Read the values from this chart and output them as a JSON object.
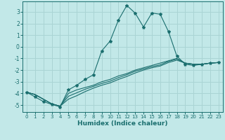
{
  "title": "",
  "xlabel": "Humidex (Indice chaleur)",
  "background_color": "#c2e8e8",
  "grid_color": "#aad4d4",
  "line_color": "#1a6e6e",
  "xlim": [
    -0.5,
    23.5
  ],
  "ylim": [
    -5.6,
    3.9
  ],
  "xticks": [
    0,
    1,
    2,
    3,
    4,
    5,
    6,
    7,
    8,
    9,
    10,
    11,
    12,
    13,
    14,
    15,
    16,
    17,
    18,
    19,
    20,
    21,
    22,
    23
  ],
  "yticks": [
    -5,
    -4,
    -3,
    -2,
    -1,
    0,
    1,
    2,
    3
  ],
  "series1_x": [
    0,
    1,
    2,
    3,
    4,
    5,
    6,
    7,
    8,
    9,
    10,
    11,
    12,
    13,
    14,
    15,
    16,
    17,
    18,
    19,
    20,
    21,
    22,
    23
  ],
  "series1_y": [
    -3.9,
    -4.3,
    -4.7,
    -4.95,
    -5.15,
    -3.7,
    -3.3,
    -2.8,
    -2.4,
    -0.35,
    0.5,
    2.3,
    3.55,
    2.9,
    1.7,
    2.9,
    2.8,
    1.3,
    -0.8,
    -1.5,
    -1.6,
    -1.5,
    -1.4,
    -1.35
  ],
  "series2_x": [
    0,
    1,
    2,
    3,
    4,
    5,
    6,
    7,
    8,
    9,
    10,
    11,
    12,
    13,
    14,
    15,
    16,
    17,
    18,
    19,
    20,
    21,
    22,
    23
  ],
  "series2_y": [
    -3.9,
    -4.1,
    -4.5,
    -4.9,
    -5.1,
    -4.0,
    -3.7,
    -3.5,
    -3.3,
    -3.0,
    -2.8,
    -2.5,
    -2.3,
    -2.0,
    -1.8,
    -1.6,
    -1.4,
    -1.2,
    -1.0,
    -1.4,
    -1.5,
    -1.5,
    -1.4,
    -1.35
  ],
  "series3_x": [
    0,
    1,
    2,
    3,
    4,
    5,
    6,
    7,
    8,
    9,
    10,
    11,
    12,
    13,
    14,
    15,
    16,
    17,
    18,
    19,
    20,
    21,
    22,
    23
  ],
  "series3_y": [
    -3.9,
    -4.1,
    -4.5,
    -4.9,
    -5.1,
    -4.25,
    -3.95,
    -3.65,
    -3.4,
    -3.15,
    -2.95,
    -2.65,
    -2.4,
    -2.1,
    -1.9,
    -1.7,
    -1.55,
    -1.25,
    -1.05,
    -1.4,
    -1.5,
    -1.5,
    -1.4,
    -1.35
  ],
  "series4_x": [
    0,
    1,
    2,
    3,
    4,
    5,
    6,
    7,
    8,
    9,
    10,
    11,
    12,
    13,
    14,
    15,
    16,
    17,
    18,
    19,
    20,
    21,
    22,
    23
  ],
  "series4_y": [
    -3.9,
    -4.1,
    -4.5,
    -4.9,
    -5.1,
    -4.5,
    -4.2,
    -3.85,
    -3.55,
    -3.3,
    -3.1,
    -2.8,
    -2.55,
    -2.25,
    -2.0,
    -1.8,
    -1.65,
    -1.35,
    -1.15,
    -1.4,
    -1.5,
    -1.5,
    -1.4,
    -1.35
  ]
}
